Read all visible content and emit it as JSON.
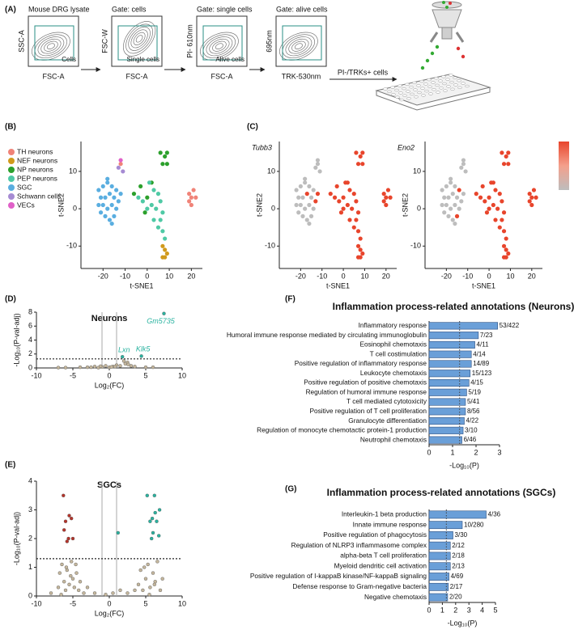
{
  "panel_labels": [
    "(A)",
    "(B)",
    "(C)",
    "(D)",
    "(E)",
    "(F)",
    "(G)"
  ],
  "flow": {
    "gates": [
      {
        "title": "Mouse DRG lysate",
        "y_label": "SSC-A",
        "x_label": "FSC-A",
        "gate_label": "Cells"
      },
      {
        "title": "Gate: cells",
        "y_label": "FSC-W",
        "x_label": "FSC-A",
        "gate_label": "Single cells"
      },
      {
        "title": "Gate: single cells",
        "y_label": "PI- 610nm",
        "x_label": "FSC-A",
        "gate_label": "Alive cells"
      },
      {
        "title": "Gate: alive cells",
        "y_label": "695nm",
        "x_label": "TRK-530nm"
      }
    ],
    "sort_label": "PI-/TRKs+ cells"
  },
  "chart_data": [
    {
      "type": "scatter",
      "x_label": "t-SNE1",
      "y_label": "t-SNE2",
      "xlim": [
        -30,
        25
      ],
      "ylim": [
        -16,
        18
      ],
      "xticks": [
        -20,
        -10,
        0,
        10,
        20
      ],
      "yticks": [
        -10,
        0,
        10
      ],
      "legend": "left",
      "series": [
        {
          "name": "TH neurons",
          "color": "#f08378",
          "x": [
            -12,
            19,
            20,
            21,
            22,
            20,
            19
          ],
          "y": [
            12,
            4,
            3,
            5,
            3,
            1,
            2
          ]
        },
        {
          "name": "NEF neurons",
          "color": "#d19a1c",
          "x": [
            7,
            8,
            9,
            7,
            8
          ],
          "y": [
            -10,
            -11,
            -12,
            -13,
            -13
          ]
        },
        {
          "name": "NP neurons",
          "color": "#2ca02c",
          "x": [
            6,
            8,
            9,
            7,
            9,
            -6,
            -3,
            0,
            2,
            -1
          ],
          "y": [
            15,
            14,
            15,
            12,
            12,
            4,
            6,
            3,
            7,
            -1
          ]
        },
        {
          "name": "PEP neurons",
          "color": "#4fc9a5",
          "x": [
            1,
            3,
            5,
            2,
            4,
            6,
            7,
            3,
            5,
            7,
            8,
            6,
            -2,
            0,
            -4
          ],
          "y": [
            7,
            5,
            4,
            1,
            0,
            2,
            -1,
            -3,
            -5,
            -6,
            -8,
            -3,
            2,
            0,
            3
          ]
        },
        {
          "name": "SGC",
          "color": "#5aaee0",
          "x": [
            -22,
            -20,
            -18,
            -16,
            -14,
            -21,
            -19,
            -17,
            -15,
            -13,
            -22,
            -20,
            -18,
            -16,
            -14,
            -19,
            -17,
            -15,
            -21,
            -16,
            -12,
            -18
          ],
          "y": [
            5,
            6,
            7,
            6,
            5,
            3,
            3,
            4,
            3,
            2,
            1,
            1,
            0,
            1,
            0,
            -2,
            -3,
            -2,
            -1,
            -4,
            4,
            8
          ]
        },
        {
          "name": "Schwann cells",
          "color": "#a68bd3",
          "x": [
            -13,
            -11
          ],
          "y": [
            11,
            10
          ]
        },
        {
          "name": "VECs",
          "color": "#e060c8",
          "x": [
            -12
          ],
          "y": [
            13
          ]
        }
      ]
    },
    {
      "type": "scatter",
      "title": "Tubb3",
      "x_label": "t-SNE1",
      "y_label": "t-SNE2",
      "xlim": [
        -30,
        25
      ],
      "ylim": [
        -16,
        18
      ],
      "xticks": [
        -20,
        -10,
        0,
        10,
        20
      ],
      "yticks": [
        -10,
        0,
        10
      ],
      "series": [
        {
          "color": "#bdbdbd",
          "x": [
            -22,
            -20,
            -18,
            -16,
            -14,
            -21,
            -19,
            -15,
            -22,
            -20,
            -18,
            -16,
            -14,
            -19,
            -17,
            -15,
            -21,
            -16,
            -18,
            -13,
            -11,
            -12,
            -12
          ],
          "y": [
            5,
            6,
            7,
            6,
            5,
            3,
            3,
            3,
            1,
            1,
            0,
            1,
            0,
            -2,
            -3,
            -2,
            -1,
            -4,
            8,
            11,
            10,
            12,
            13
          ]
        },
        {
          "color": "#e8452c",
          "x": [
            19,
            20,
            21,
            22,
            20,
            19,
            7,
            8,
            9,
            7,
            8,
            6,
            8,
            9,
            7,
            9,
            -6,
            -3,
            0,
            2,
            -1,
            1,
            3,
            5,
            2,
            4,
            6,
            7,
            3,
            5,
            7,
            8,
            6,
            -2,
            0,
            -4,
            -13,
            -12,
            -17
          ],
          "y": [
            4,
            3,
            5,
            3,
            1,
            2,
            -10,
            -11,
            -12,
            -13,
            -13,
            15,
            14,
            15,
            12,
            12,
            4,
            6,
            3,
            7,
            -1,
            7,
            5,
            4,
            1,
            0,
            2,
            -1,
            -3,
            -5,
            -6,
            -8,
            -3,
            2,
            0,
            3,
            2,
            4,
            4
          ]
        }
      ]
    },
    {
      "type": "scatter",
      "title": "Eno2",
      "x_label": "t-SNE1",
      "y_label": "t-SNE2",
      "xlim": [
        -30,
        25
      ],
      "ylim": [
        -16,
        18
      ],
      "xticks": [
        -20,
        -10,
        0,
        10,
        20
      ],
      "yticks": [
        -10,
        0,
        10
      ],
      "colorbar": [
        "#e8452c",
        "#f4a08c",
        "#bdbdbd"
      ],
      "series": [
        {
          "color": "#bdbdbd",
          "x": [
            -22,
            -20,
            -18,
            -16,
            -21,
            -19,
            -17,
            -15,
            -13,
            -22,
            -20,
            -18,
            -16,
            -14,
            -19,
            -17,
            -21,
            -16,
            -12,
            -18,
            -13,
            -11,
            -12,
            -12
          ],
          "y": [
            5,
            6,
            7,
            6,
            3,
            3,
            4,
            3,
            2,
            1,
            1,
            0,
            1,
            0,
            -2,
            -3,
            -1,
            -4,
            4,
            8,
            11,
            10,
            12,
            13
          ]
        },
        {
          "color": "#e8452c",
          "x": [
            19,
            20,
            21,
            22,
            20,
            19,
            7,
            8,
            9,
            7,
            8,
            6,
            8,
            9,
            7,
            9,
            -6,
            -3,
            0,
            2,
            -1,
            1,
            3,
            5,
            2,
            4,
            6,
            7,
            3,
            5,
            7,
            8,
            6,
            -2,
            0,
            -4,
            -14,
            -15
          ],
          "y": [
            4,
            3,
            5,
            3,
            1,
            2,
            -10,
            -11,
            -12,
            -13,
            -13,
            15,
            14,
            15,
            12,
            12,
            4,
            6,
            3,
            7,
            -1,
            7,
            5,
            4,
            1,
            0,
            2,
            -1,
            -3,
            -5,
            -6,
            -8,
            -3,
            2,
            0,
            3,
            5,
            -2
          ]
        }
      ]
    },
    {
      "type": "scatter",
      "title": "Neurons",
      "x_label": "Log₂(FC)",
      "y_label": "-Log₁₀(P-val-adj)",
      "xlim": [
        -10,
        10
      ],
      "ylim": [
        0,
        8
      ],
      "xticks": [
        -10,
        -5,
        0,
        5,
        10
      ],
      "yticks": [
        0,
        2,
        4,
        6,
        8
      ],
      "vlines": [
        -1,
        1
      ],
      "hlines": [
        1.3
      ],
      "series": [
        {
          "color": "#c4b69c",
          "x": [
            -3,
            -2,
            -1.5,
            -1,
            -0.5,
            0,
            0.5,
            1,
            1.5,
            2,
            2.5,
            3,
            -4,
            -6,
            3.5,
            5,
            2.2,
            2.6,
            -2.5,
            0.8,
            -7,
            6,
            -1.2,
            0.3
          ],
          "y": [
            0.1,
            0.2,
            0.05,
            0.15,
            0.3,
            0.1,
            0.2,
            0.4,
            0.3,
            1.0,
            0.8,
            0.3,
            0.1,
            0.05,
            0.2,
            0.1,
            0.6,
            0.5,
            0.1,
            0.2,
            0.05,
            0.1,
            0.25,
            0.15
          ]
        },
        {
          "color": "#2ab3a0",
          "x": [
            7.5,
            1.8,
            4.4
          ],
          "y": [
            7.8,
            1.6,
            1.7
          ],
          "labels": [
            "Gm5735",
            "Lxn",
            "Klk5"
          ]
        }
      ]
    },
    {
      "type": "scatter",
      "title": "SGCs",
      "x_label": "Log₂(FC)",
      "y_label": "-Log₁₀(P-val-adj)",
      "xlim": [
        -10,
        10
      ],
      "ylim": [
        0,
        4
      ],
      "xticks": [
        -10,
        -5,
        0,
        5,
        10
      ],
      "yticks": [
        0,
        1,
        2,
        3,
        4
      ],
      "vlines": [
        -1,
        1
      ],
      "hlines": [
        1.3
      ],
      "series": [
        {
          "color": "#c4b69c",
          "x": [
            -7,
            -6.8,
            -6.5,
            -6.2,
            -6,
            -5.8,
            -5.5,
            -5.2,
            -5,
            -4.8,
            -4.5,
            -4.2,
            -4,
            -3.5,
            -3,
            -6.6,
            -5.9,
            -5.3,
            -4.6,
            -2,
            -0.5,
            0.5,
            1.5,
            2.5,
            4,
            4.3,
            4.6,
            5,
            5.3,
            5.6,
            6,
            6.3,
            6.6,
            7,
            7.3,
            4.8,
            5.5,
            6.2,
            3.5,
            -8
          ],
          "y": [
            0.3,
            0.8,
            1.1,
            0.5,
            0.2,
            0.9,
            0.4,
            1.2,
            0.6,
            0.3,
            0.8,
            0.2,
            0.5,
            0.1,
            0.3,
            0.05,
            1.0,
            0.7,
            1.1,
            0.1,
            0.05,
            0.1,
            0.2,
            0.1,
            0.4,
            0.9,
            0.2,
            0.6,
            1.1,
            0.3,
            0.8,
            0.5,
            1.2,
            0.2,
            0.6,
            1.0,
            0.05,
            0.4,
            0.2,
            0.1
          ]
        },
        {
          "color": "#b5332a",
          "x": [
            -6.3,
            -5.5,
            -5.2,
            -6.0,
            -5.6,
            -5.0,
            -5.8,
            -6.2
          ],
          "y": [
            3.5,
            2.8,
            2.7,
            2.6,
            2.0,
            2.0,
            1.9,
            2.3
          ]
        },
        {
          "color": "#2ab3a0",
          "x": [
            5.2,
            6.2,
            6.9,
            5.9,
            6.5,
            5.6,
            6.0,
            6.8,
            5.8,
            6.3,
            1.2
          ],
          "y": [
            3.5,
            3.5,
            3.0,
            2.7,
            2.6,
            2.6,
            2.2,
            2.1,
            2.0,
            2.9,
            2.2
          ]
        }
      ]
    },
    {
      "type": "barh",
      "title": "Inflammation process-related annotations (Neurons)",
      "x_label": "-Log₁₀(P)",
      "xlim": [
        0,
        3
      ],
      "xticks": [
        0,
        1,
        2,
        3
      ],
      "threshold": 1.3,
      "color": "#6a9fd8",
      "categories": [
        "Inflammatory response",
        "Humoral immune response mediated by circulating immunoglobulin",
        "Eosinophil chemotaxis",
        "T cell costimulation",
        "Positive regulation of inflammatory response",
        "Leukocyte chemotaxis",
        "Positive regulation of positive chemotaxis",
        "Regulation of humoral immune response",
        "T cell mediated cytotoxicity",
        "Positive regulation of T cell proliferation",
        "Granulocyte differentiation",
        "Regulation of monocyte chemotactic protein-1 production",
        "Neutrophil chemotaxis"
      ],
      "values": [
        2.92,
        2.1,
        1.95,
        1.8,
        1.8,
        1.75,
        1.7,
        1.6,
        1.55,
        1.55,
        1.5,
        1.45,
        1.4
      ],
      "counts": [
        "53/422",
        "7/23",
        "4/11",
        "4/14",
        "14/89",
        "15/123",
        "4/15",
        "5/19",
        "5/41",
        "8/56",
        "4/22",
        "3/10",
        "6/46"
      ]
    },
    {
      "type": "barh",
      "title": "Inflammation process-related annotations (SGCs)",
      "x_label": "-Log₁₀(P)",
      "xlim": [
        0,
        5
      ],
      "xticks": [
        0,
        1,
        2,
        3,
        4,
        5
      ],
      "threshold": 1.3,
      "color": "#6a9fd8",
      "categories": [
        "Interleukin-1 beta production",
        "Innate immune response",
        "Positive regulation of phagocytosis",
        "Regulation of NLRP3 inflammasome complex",
        "alpha-beta T cell proliferation",
        "Myeloid dendritic cell activation",
        "Positive regulation of I-kappaB kinase/NF-kappaB signaling",
        "Defense response to Gram-negative bacteria",
        "Negative chemotaxis"
      ],
      "values": [
        4.3,
        2.5,
        1.8,
        1.6,
        1.6,
        1.6,
        1.5,
        1.45,
        1.4
      ],
      "counts": [
        "4/36",
        "10/280",
        "3/30",
        "2/12",
        "2/18",
        "2/13",
        "4/69",
        "2/17",
        "2/20"
      ]
    }
  ]
}
